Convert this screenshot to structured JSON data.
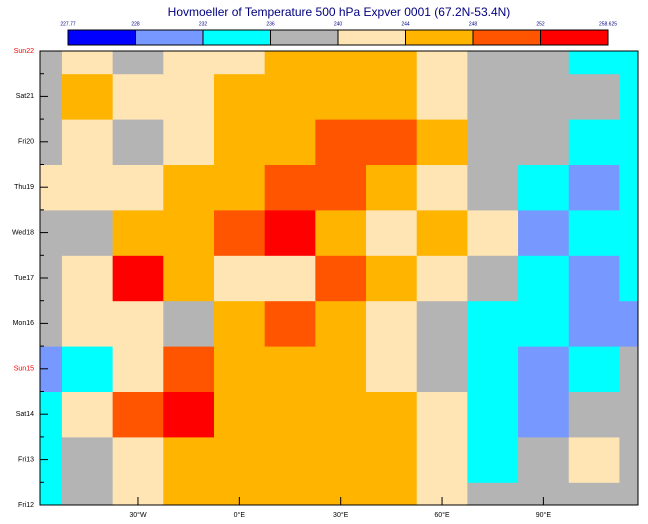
{
  "chart_data": {
    "type": "hovmoeller",
    "title": "Hovmoeller of Temperature 500 hPa Expver 0001 (67.2N-53.4N)",
    "levels": [
      227.77,
      228,
      232,
      236,
      240,
      244,
      248,
      252,
      258.625
    ],
    "level_colors": [
      "#0000ff",
      "#7799ff",
      "#00ffff",
      "#b4b4b4",
      "#ffe4b4",
      "#ffb400",
      "#ff5500",
      "#ff0000"
    ],
    "categories": [
      "Fri12",
      "Fri13",
      "Sat14",
      "Sun15",
      "Mon16",
      "Tue17",
      "Wed18",
      "Thu19",
      "Fri20",
      "Sat21",
      "Sun22"
    ],
    "category_colors": [
      "#000000",
      "#000000",
      "#000000",
      "#ff0000",
      "#000000",
      "#000000",
      "#000000",
      "#000000",
      "#000000",
      "#000000",
      "#ff0000"
    ],
    "x": [
      -60,
      -45,
      -30,
      -15,
      0,
      15,
      30,
      45,
      60,
      75,
      90,
      105,
      120
    ],
    "xlim": [
      -59,
      118
    ],
    "xticks": [
      {
        "value": -30,
        "label": "30°W"
      },
      {
        "value": 0,
        "label": "0°E"
      },
      {
        "value": 30,
        "label": "30°E"
      },
      {
        "value": 60,
        "label": "60°E"
      },
      {
        "value": 90,
        "label": "90°E"
      }
    ],
    "field": [
      [
        234,
        238,
        242,
        246,
        246,
        246,
        246,
        246,
        242,
        238,
        238,
        238,
        238
      ],
      [
        234,
        238,
        242,
        246,
        246,
        246,
        246,
        246,
        242,
        234,
        238,
        242,
        238
      ],
      [
        234,
        242,
        250,
        254,
        246,
        246,
        246,
        246,
        242,
        234,
        230,
        238,
        238
      ],
      [
        230,
        234,
        242,
        250,
        246,
        246,
        246,
        242,
        238,
        234,
        230,
        234,
        238
      ],
      [
        238,
        242,
        242,
        238,
        246,
        250,
        246,
        242,
        238,
        234,
        234,
        230,
        230
      ],
      [
        238,
        242,
        254,
        246,
        242,
        242,
        250,
        246,
        242,
        238,
        234,
        230,
        234
      ],
      [
        238,
        238,
        246,
        246,
        250,
        254,
        246,
        242,
        246,
        242,
        230,
        234,
        234
      ],
      [
        242,
        242,
        242,
        246,
        246,
        250,
        250,
        246,
        242,
        238,
        234,
        230,
        234
      ],
      [
        238,
        242,
        238,
        242,
        246,
        246,
        250,
        250,
        246,
        238,
        238,
        234,
        234
      ],
      [
        238,
        246,
        242,
        242,
        246,
        246,
        246,
        246,
        242,
        238,
        238,
        238,
        234
      ],
      [
        238,
        242,
        238,
        242,
        242,
        246,
        246,
        246,
        242,
        238,
        238,
        234,
        234
      ]
    ]
  }
}
